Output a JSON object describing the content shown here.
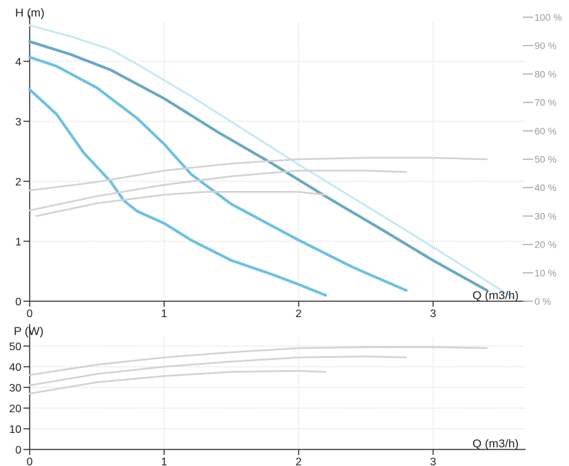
{
  "chart_data": [
    {
      "type": "line",
      "name": "head",
      "ylabel": "H (m)",
      "xlabel": "Q (m3/h)",
      "xlim": [
        0,
        3.5
      ],
      "ylim": [
        0,
        4.7
      ],
      "x_ticks": [
        "0",
        "1",
        "2",
        "3"
      ],
      "y_ticks": [
        "0",
        "1",
        "2",
        "3",
        "4"
      ],
      "y2_ticks": [
        "0 %",
        "10 %",
        "20 %",
        "30 %",
        "40 %",
        "50 %",
        "60 %",
        "70 %",
        "80 %",
        "90 %",
        "100 %"
      ],
      "y2lim": [
        0,
        100
      ],
      "grid": true,
      "colors": {
        "curve": "#6ec0e3",
        "curve_max": "#6aa8c2",
        "efficiency": "#d2d2d2",
        "limit": "#c6e9f5"
      },
      "series": [
        {
          "role": "max-speed-dashed",
          "x": [
            0,
            0.3,
            0.6,
            0.8,
            1.2,
            1.6,
            2.0,
            2.4,
            2.8,
            3.2,
            3.6
          ],
          "y": [
            4.6,
            4.42,
            4.2,
            3.95,
            3.42,
            2.85,
            2.28,
            1.73,
            1.18,
            0.62,
            0.05
          ]
        },
        {
          "role": "speed-3",
          "x": [
            0,
            0.3,
            0.6,
            1.0,
            1.4,
            1.8,
            2.2,
            2.6,
            3.0,
            3.4
          ],
          "y": [
            4.33,
            4.12,
            3.86,
            3.38,
            2.82,
            2.3,
            1.75,
            1.22,
            0.68,
            0.18
          ]
        },
        {
          "role": "speed-2",
          "x": [
            0,
            0.2,
            0.5,
            0.8,
            1.0,
            1.2,
            1.5,
            2.0,
            2.4,
            2.8
          ],
          "y": [
            4.07,
            3.92,
            3.56,
            3.05,
            2.62,
            2.12,
            1.62,
            1.02,
            0.57,
            0.18
          ]
        },
        {
          "role": "speed-1",
          "x": [
            0,
            0.2,
            0.4,
            0.6,
            0.7,
            0.8,
            1.0,
            1.2,
            1.5,
            1.8,
            2.0,
            2.2
          ],
          "y": [
            3.53,
            3.12,
            2.48,
            2.0,
            1.68,
            1.5,
            1.3,
            1.02,
            0.68,
            0.45,
            0.28,
            0.1
          ]
        },
        {
          "role": "efficiency-3",
          "axis": "right",
          "x": [
            0,
            0.5,
            1.0,
            1.5,
            2.0,
            2.5,
            3.0,
            3.4
          ],
          "y": [
            39,
            42,
            46,
            48.5,
            50,
            50.5,
            50.5,
            50
          ]
        },
        {
          "role": "efficiency-2",
          "axis": "right",
          "x": [
            0,
            0.5,
            1.0,
            1.5,
            2.0,
            2.5,
            2.8
          ],
          "y": [
            32,
            37,
            41,
            44,
            46,
            46,
            45.5
          ]
        },
        {
          "role": "efficiency-1",
          "axis": "right",
          "x": [
            0.05,
            0.5,
            1.0,
            1.3,
            1.6,
            2.0,
            2.2
          ],
          "y": [
            30,
            34.5,
            37.5,
            38.5,
            38.5,
            38.5,
            37.5
          ]
        }
      ]
    },
    {
      "type": "line",
      "name": "power",
      "ylabel": "P (W)",
      "xlabel": "Q (m3/h)",
      "xlim": [
        0,
        3.5
      ],
      "ylim": [
        0,
        52
      ],
      "x_ticks": [
        "0",
        "1",
        "2",
        "3"
      ],
      "y_ticks": [
        "0",
        "10",
        "20",
        "30",
        "40",
        "50"
      ],
      "grid": true,
      "colors": {
        "curve": "#d2d2d2"
      },
      "series": [
        {
          "role": "power-3",
          "x": [
            0,
            0.5,
            1.0,
            1.5,
            2.0,
            2.5,
            3.0,
            3.4
          ],
          "y": [
            36,
            41,
            44.5,
            47,
            49,
            49.5,
            49.5,
            49
          ]
        },
        {
          "role": "power-2",
          "x": [
            0,
            0.5,
            1.0,
            1.5,
            2.0,
            2.5,
            2.8
          ],
          "y": [
            31,
            36.5,
            40,
            42.5,
            44.5,
            45,
            44.5
          ]
        },
        {
          "role": "power-1",
          "x": [
            0,
            0.5,
            1.0,
            1.5,
            2.0,
            2.2
          ],
          "y": [
            27,
            32.5,
            35.5,
            37.5,
            38,
            37.5
          ]
        }
      ]
    }
  ]
}
